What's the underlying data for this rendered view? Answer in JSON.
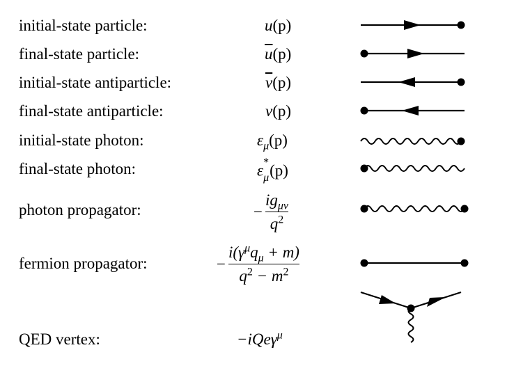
{
  "rows": [
    {
      "label": "initial-state particle:"
    },
    {
      "label": "final-state particle:"
    },
    {
      "label": "initial-state antiparticle:"
    },
    {
      "label": "final-state antiparticle:"
    },
    {
      "label": "initial-state photon:"
    },
    {
      "label": "final-state photon:"
    },
    {
      "label": "photon propagator:"
    },
    {
      "label": "fermion propagator:"
    },
    {
      "label": "QED vertex:"
    }
  ],
  "formulas": {
    "u": {
      "sym": "u",
      "arg": "(p)"
    },
    "ubar": {
      "sym": "u",
      "arg": "(p)"
    },
    "vbar": {
      "sym": "v",
      "arg": "(p)"
    },
    "v": {
      "sym": "v",
      "arg": "(p)"
    },
    "eps": {
      "sym": "ε",
      "sub": "μ",
      "arg": "(p)"
    },
    "epsstar": {
      "sym": "ε",
      "sub": "μ",
      "sup": "*",
      "arg": "(p)"
    },
    "photon_prop": {
      "minus": "−",
      "num": "ig",
      "num_sub": "μν",
      "den": "q",
      "den_sup": "2"
    },
    "fermion_prop": {
      "minus": "−",
      "num_a": "i(γ",
      "num_sup": "μ",
      "num_b": "q",
      "num_sub": "μ",
      "num_c": " + m)",
      "den_a": "q",
      "den_sup_a": "2",
      "den_b": " − m",
      "den_sup_b": "2"
    },
    "vertex": {
      "a": "−iQeγ",
      "sup": "μ"
    }
  }
}
